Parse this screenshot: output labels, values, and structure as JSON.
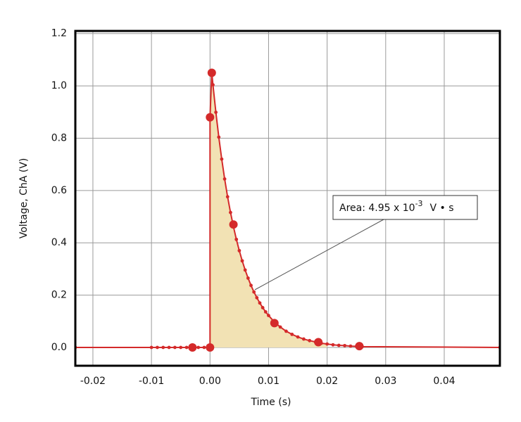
{
  "chart_data": {
    "type": "line",
    "x_label": "Time (s)",
    "y_label": "Voltage, ChA (V)",
    "series": [
      {
        "color": "#d42a2a",
        "x": [
          -0.023,
          -0.01,
          -0.009,
          -0.008,
          -0.007,
          -0.006,
          -0.005,
          -0.004,
          -0.003,
          -0.002,
          -0.001,
          0,
          0,
          0.0003,
          0.0005,
          0.001,
          0.0015,
          0.002,
          0.0025,
          0.003,
          0.0035,
          0.004,
          0.0045,
          0.005,
          0.0055,
          0.006,
          0.0065,
          0.007,
          0.0075,
          0.008,
          0.0085,
          0.009,
          0.0095,
          0.01,
          0.011,
          0.012,
          0.013,
          0.014,
          0.015,
          0.016,
          0.017,
          0.018,
          0.019,
          0.02,
          0.021,
          0.022,
          0.023,
          0.024,
          0.025,
          0.026,
          0.0495
        ],
        "values": [
          0,
          0,
          0,
          0,
          0,
          0,
          0,
          0,
          0,
          0,
          0,
          0,
          0.88,
          1.05,
          1.004,
          0.899,
          0.804,
          0.72,
          0.644,
          0.576,
          0.516,
          0.462,
          0.413,
          0.37,
          0.331,
          0.296,
          0.265,
          0.237,
          0.212,
          0.19,
          0.17,
          0.152,
          0.136,
          0.122,
          0.097,
          0.078,
          0.062,
          0.05,
          0.04,
          0.032,
          0.026,
          0.021,
          0.016,
          0.013,
          0.01,
          0.008,
          0.007,
          0.005,
          0.004,
          0.003,
          0
        ]
      }
    ],
    "highlights": {
      "x": [
        -0.003,
        0,
        0,
        0.0003,
        0.004,
        0.011,
        0.0185,
        0.0255
      ],
      "values": [
        0,
        0,
        0.88,
        1.05,
        0.47,
        0.093,
        0.02,
        0.005
      ]
    },
    "area_range": [
      0,
      0.02
    ],
    "area_color": "#f2e2b4",
    "annotation": {
      "text": "Area: 4.95 x 10",
      "sup": "-3",
      "unit": "V • s"
    },
    "xlim": [
      -0.023,
      0.0495
    ],
    "ylim": [
      -0.07,
      1.21
    ],
    "xticks": [
      {
        "value": -0.02,
        "label": "-0.02"
      },
      {
        "value": -0.01,
        "label": "-0.01"
      },
      {
        "value": 0,
        "label": "0.00"
      },
      {
        "value": 0.01,
        "label": "0.01"
      },
      {
        "value": 0.02,
        "label": "0.02"
      },
      {
        "value": 0.03,
        "label": "0.03"
      },
      {
        "value": 0.04,
        "label": "0.04"
      }
    ],
    "yticks": [
      {
        "value": 0,
        "label": "0.0"
      },
      0.2,
      0.4,
      0.6,
      0.8,
      {
        "value": 1,
        "label": "1.0"
      },
      1.2
    ],
    "grid": true
  }
}
